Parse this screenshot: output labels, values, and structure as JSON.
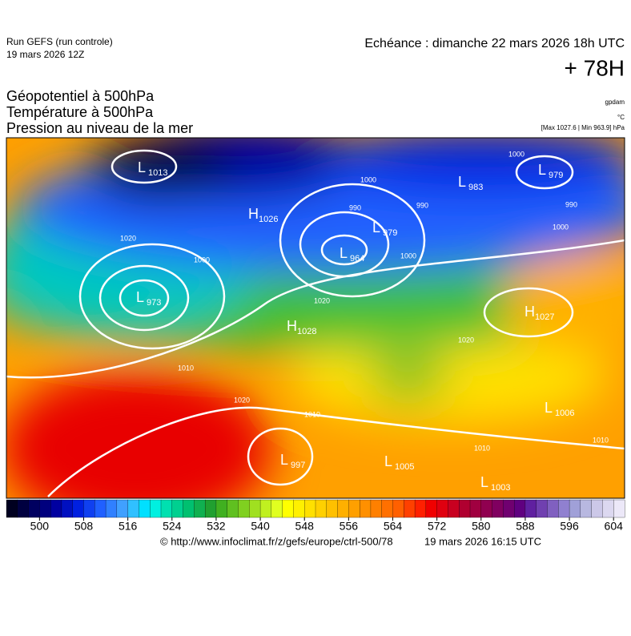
{
  "header": {
    "run": "Run GEFS (run controle)",
    "run_date": "19 mars 2026 12Z",
    "echeance": "Echéance : dimanche 22 mars 2026 18h UTC",
    "lead": "+ 78H",
    "fields": [
      "Géopotentiel à 500hPa",
      "Température à 500hPa",
      "Pression au niveau de la mer"
    ],
    "unit_geo": "gpdam",
    "unit_temp": "°C",
    "extremes": "[Max 1027.6 | Min 963.9] hPa"
  },
  "centers": [
    {
      "letter": "L",
      "value": "1013"
    },
    {
      "letter": "H",
      "value": "1026"
    },
    {
      "letter": "L",
      "value": "983"
    },
    {
      "letter": "L",
      "value": "979"
    },
    {
      "letter": "L",
      "value": "979"
    },
    {
      "letter": "L",
      "value": "964"
    },
    {
      "letter": "L",
      "value": "973"
    },
    {
      "letter": "H",
      "value": "1028"
    },
    {
      "letter": "H",
      "value": "1027"
    },
    {
      "letter": "L",
      "value": "997"
    },
    {
      "letter": "L",
      "value": "1005"
    },
    {
      "letter": "L",
      "value": "1003"
    },
    {
      "letter": "L",
      "value": "1006"
    }
  ],
  "isobar_labels": [
    "1020",
    "1000",
    "990",
    "1000",
    "990",
    "1000",
    "990",
    "1000",
    "1020",
    "1010",
    "1020",
    "1010",
    "1010",
    "1020",
    "1010",
    "1000"
  ],
  "colorbar": {
    "range": [
      494,
      606
    ],
    "ticks": [
      500,
      508,
      516,
      524,
      532,
      540,
      548,
      556,
      564,
      572,
      580,
      588,
      596,
      604
    ],
    "colors": [
      "#000020",
      "#000040",
      "#000060",
      "#00007e",
      "#0000a0",
      "#0010c0",
      "#0020e0",
      "#1040f0",
      "#2060ff",
      "#3080ff",
      "#40a0ff",
      "#30c0ff",
      "#00e0ff",
      "#00f0e0",
      "#00e0b0",
      "#00d090",
      "#00c070",
      "#10b050",
      "#20a030",
      "#40b020",
      "#60c020",
      "#80d020",
      "#a0e020",
      "#c0f020",
      "#e0ff20",
      "#ffff00",
      "#fff000",
      "#ffe000",
      "#ffd000",
      "#ffc000",
      "#ffb000",
      "#ffa000",
      "#ff9000",
      "#ff8000",
      "#ff7000",
      "#ff6000",
      "#ff4000",
      "#ff2000",
      "#f00000",
      "#e00010",
      "#c80020",
      "#b00030",
      "#a00040",
      "#900050",
      "#800060",
      "#700070",
      "#600080",
      "#6020a0",
      "#7040b0",
      "#8060c0",
      "#9080d0",
      "#a0a0d8",
      "#b8b8e0",
      "#ccc8e8",
      "#dcd8f0",
      "#ece8f8"
    ]
  },
  "footer": {
    "url": "© http://www.infoclimat.fr/z/gefs/europe/ctrl-500/78",
    "generated": "19 mars 2026 16:15 UTC"
  }
}
